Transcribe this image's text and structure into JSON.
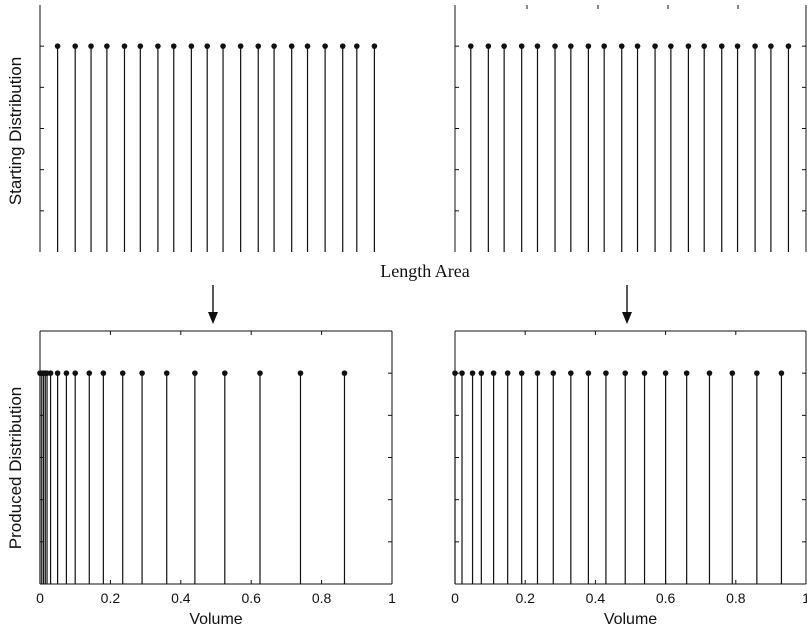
{
  "figure": {
    "ylabel_top": "Starting Distribution",
    "ylabel_bottom": "Produced Distribution",
    "center_label": "Length Area"
  },
  "chart_data": [
    {
      "type": "stem",
      "panel": "top-left",
      "xlim": [
        0,
        1
      ],
      "ylim": [
        0,
        1.2
      ],
      "x": [
        0.05,
        0.1,
        0.145,
        0.19,
        0.24,
        0.285,
        0.335,
        0.38,
        0.43,
        0.475,
        0.52,
        0.57,
        0.62,
        0.665,
        0.715,
        0.76,
        0.81,
        0.86,
        0.9,
        0.95
      ],
      "y": [
        1,
        1,
        1,
        1,
        1,
        1,
        1,
        1,
        1,
        1,
        1,
        1,
        1,
        1,
        1,
        1,
        1,
        1,
        1,
        1
      ],
      "xticks": [],
      "ylabel": "Starting Distribution"
    },
    {
      "type": "stem",
      "panel": "top-right",
      "xlim": [
        0,
        1
      ],
      "ylim": [
        0,
        1.2
      ],
      "x": [
        0.045,
        0.095,
        0.14,
        0.19,
        0.235,
        0.285,
        0.33,
        0.38,
        0.425,
        0.475,
        0.52,
        0.57,
        0.615,
        0.665,
        0.71,
        0.76,
        0.805,
        0.855,
        0.9,
        0.95
      ],
      "y": [
        1,
        1,
        1,
        1,
        1,
        1,
        1,
        1,
        1,
        1,
        1,
        1,
        1,
        1,
        1,
        1,
        1,
        1,
        1,
        1
      ],
      "xticks": []
    },
    {
      "type": "stem",
      "panel": "bottom-left",
      "xlim": [
        0,
        1
      ],
      "ylim": [
        0,
        1.2
      ],
      "x": [
        0.0,
        0.005,
        0.01,
        0.015,
        0.02,
        0.03,
        0.05,
        0.075,
        0.1,
        0.14,
        0.18,
        0.235,
        0.29,
        0.36,
        0.44,
        0.525,
        0.625,
        0.74,
        0.865
      ],
      "y": [
        1,
        1,
        1,
        1,
        1,
        1,
        1,
        1,
        1,
        1,
        1,
        1,
        1,
        1,
        1,
        1,
        1,
        1,
        1
      ],
      "xticks": [
        "0",
        "0.2",
        "0.4",
        "0.6",
        "0.8",
        "1"
      ],
      "xlabel": "Volume",
      "ylabel": "Produced Distribution"
    },
    {
      "type": "stem",
      "panel": "bottom-right",
      "xlim": [
        0,
        1
      ],
      "ylim": [
        0,
        1.2
      ],
      "x": [
        0.0,
        0.02,
        0.05,
        0.075,
        0.11,
        0.15,
        0.19,
        0.235,
        0.28,
        0.33,
        0.38,
        0.43,
        0.485,
        0.54,
        0.6,
        0.66,
        0.725,
        0.79,
        0.86,
        0.93
      ],
      "y": [
        1,
        1,
        1,
        1,
        1,
        1,
        1,
        1,
        1,
        1,
        1,
        1,
        1,
        1,
        1,
        1,
        1,
        1,
        1,
        1
      ],
      "xticks": [
        "0",
        "0.2",
        "0.4",
        "0.6",
        "0.8",
        "1"
      ],
      "xlabel": "Volume"
    }
  ]
}
